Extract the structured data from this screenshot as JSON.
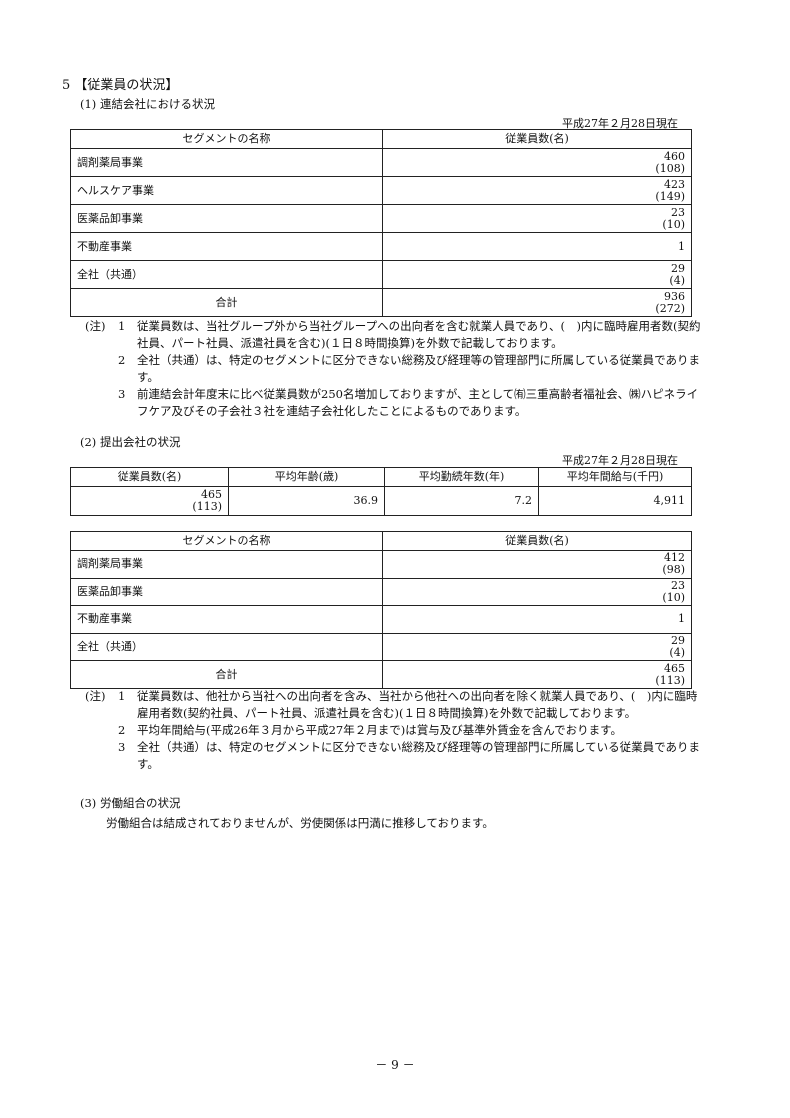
{
  "section_title": "5 【従業員の状況】",
  "consolidated": {
    "heading": "(1) 連結会社における状況",
    "as_of": "平成27年２月28日現在",
    "headers": [
      "セグメントの名称",
      "従業員数(名)"
    ],
    "rows": [
      {
        "name": "調剤薬局事業",
        "count": "460",
        "temp": "(108)"
      },
      {
        "name": "ヘルスケア事業",
        "count": "423",
        "temp": "(149)"
      },
      {
        "name": "医薬品卸事業",
        "count": "23",
        "temp": "(10)"
      },
      {
        "name": "不動産事業",
        "count": "1",
        "temp": ""
      },
      {
        "name": "全社（共通）",
        "count": "29",
        "temp": "(4)"
      }
    ],
    "total": {
      "name": "合計",
      "count": "936",
      "temp": "(272)"
    },
    "notes_label": "(注)",
    "notes": [
      {
        "no": "1",
        "text": "従業員数は、当社グループ外から当社グループへの出向者を含む就業人員であり、(　)内に臨時雇用者数(契約社員、パート社員、派遣社員を含む)(１日８時間換算)を外数で記載しております。"
      },
      {
        "no": "2",
        "text": "全社（共通）は、特定のセグメントに区分できない総務及び経理等の管理部門に所属している従業員であります。"
      },
      {
        "no": "3",
        "text": "前連結会計年度末に比べ従業員数が250名増加しておりますが、主として㈲三重高齢者福祉会、㈱ハピネライフケア及びその子会社３社を連結子会社化したことによるものであります。"
      }
    ]
  },
  "filing": {
    "heading": "(2) 提出会社の状況",
    "as_of": "平成27年２月28日現在",
    "summary_headers": [
      "従業員数(名)",
      "平均年齢(歳)",
      "平均勤続年数(年)",
      "平均年間給与(千円)"
    ],
    "summary_values": {
      "count": "465",
      "temp": "(113)",
      "age": "36.9",
      "tenure": "7.2",
      "salary": "4,911"
    },
    "headers": [
      "セグメントの名称",
      "従業員数(名)"
    ],
    "rows": [
      {
        "name": "調剤薬局事業",
        "count": "412",
        "temp": "(98)"
      },
      {
        "name": "医薬品卸事業",
        "count": "23",
        "temp": "(10)"
      },
      {
        "name": "不動産事業",
        "count": "1",
        "temp": ""
      },
      {
        "name": "全社（共通）",
        "count": "29",
        "temp": "(4)"
      }
    ],
    "total": {
      "name": "合計",
      "count": "465",
      "temp": "(113)"
    },
    "notes_label": "(注)",
    "notes": [
      {
        "no": "1",
        "text": "従業員数は、他社から当社への出向者を含み、当社から他社への出向者を除く就業人員であり、(　)内に臨時雇用者数(契約社員、パート社員、派遣社員を含む)(１日８時間換算)を外数で記載しております。"
      },
      {
        "no": "2",
        "text": "平均年間給与(平成26年３月から平成27年２月まで)は賞与及び基準外賃金を含んでおります。"
      },
      {
        "no": "3",
        "text": "全社（共通）は、特定のセグメントに区分できない総務及び経理等の管理部門に所属している従業員であります。"
      }
    ]
  },
  "union": {
    "heading": "(3) 労働組合の状況",
    "text": "労働組合は結成されておりませんが、労使関係は円満に推移しております。"
  },
  "page_number": "－ 9 －"
}
